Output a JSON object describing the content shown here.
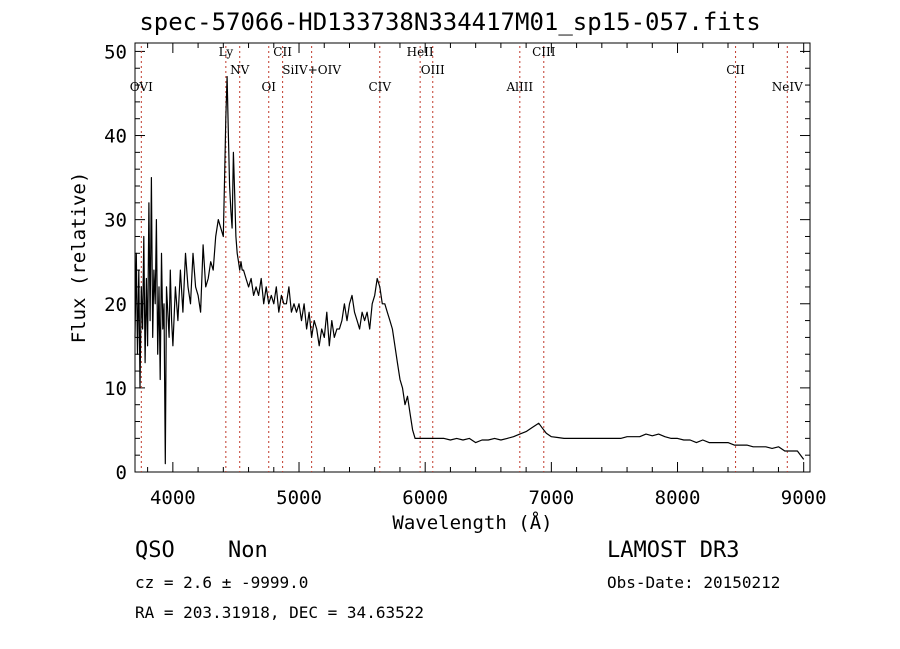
{
  "chart_data": {
    "type": "line",
    "title": "spec-57066-HD133738N334417M01_sp15-057.fits",
    "xlabel": "Wavelength (Å)",
    "ylabel": "Flux (relative)",
    "xlim": [
      3700,
      9050
    ],
    "ylim": [
      0,
      51
    ],
    "xticks": [
      4000,
      5000,
      6000,
      7000,
      8000,
      9000
    ],
    "yticks": [
      0,
      10,
      20,
      30,
      40,
      50
    ],
    "grid": false,
    "series": [
      {
        "name": "flux",
        "x": [
          3700,
          3710,
          3720,
          3730,
          3740,
          3750,
          3760,
          3770,
          3780,
          3790,
          3800,
          3810,
          3820,
          3830,
          3840,
          3850,
          3860,
          3870,
          3880,
          3890,
          3900,
          3910,
          3920,
          3930,
          3940,
          3950,
          3960,
          3970,
          3980,
          3990,
          4000,
          4020,
          4040,
          4060,
          4080,
          4100,
          4120,
          4140,
          4160,
          4180,
          4200,
          4220,
          4240,
          4260,
          4280,
          4300,
          4320,
          4340,
          4360,
          4380,
          4400,
          4410,
          4420,
          4430,
          4440,
          4450,
          4460,
          4470,
          4480,
          4490,
          4500,
          4510,
          4520,
          4530,
          4540,
          4550,
          4560,
          4580,
          4600,
          4620,
          4640,
          4660,
          4680,
          4700,
          4720,
          4740,
          4760,
          4780,
          4800,
          4820,
          4840,
          4860,
          4880,
          4900,
          4920,
          4940,
          4960,
          4980,
          5000,
          5020,
          5040,
          5060,
          5080,
          5100,
          5120,
          5140,
          5160,
          5180,
          5200,
          5220,
          5240,
          5260,
          5280,
          5300,
          5320,
          5340,
          5360,
          5380,
          5400,
          5420,
          5440,
          5460,
          5480,
          5500,
          5520,
          5540,
          5560,
          5580,
          5600,
          5620,
          5640,
          5660,
          5680,
          5700,
          5720,
          5740,
          5760,
          5780,
          5800,
          5820,
          5840,
          5860,
          5880,
          5900,
          5920,
          5940,
          5960,
          6000,
          6050,
          6100,
          6150,
          6200,
          6250,
          6300,
          6350,
          6400,
          6450,
          6500,
          6550,
          6600,
          6650,
          6700,
          6750,
          6800,
          6850,
          6900,
          6930,
          6960,
          7000,
          7050,
          7100,
          7150,
          7200,
          7250,
          7300,
          7350,
          7400,
          7450,
          7500,
          7550,
          7600,
          7650,
          7700,
          7750,
          7800,
          7850,
          7900,
          7950,
          8000,
          8050,
          8100,
          8150,
          8200,
          8250,
          8300,
          8350,
          8400,
          8450,
          8500,
          8550,
          8600,
          8650,
          8700,
          8750,
          8800,
          8850,
          8900,
          8950,
          9000
        ],
        "values": [
          16,
          26,
          14,
          24,
          10,
          22,
          17,
          28,
          13,
          23,
          15,
          32,
          18,
          35,
          16,
          24,
          20,
          30,
          14,
          22,
          11,
          26,
          17,
          20,
          1,
          22,
          19,
          16,
          24,
          18,
          15,
          22,
          18,
          24,
          19,
          26,
          22,
          20,
          26,
          22,
          21,
          19,
          27,
          22,
          23,
          25,
          24,
          28,
          30,
          29,
          28,
          35,
          42,
          47,
          40,
          34,
          31,
          29,
          38,
          33,
          28,
          26,
          25,
          24,
          25,
          24,
          24,
          23,
          22,
          23,
          21,
          22,
          21,
          23,
          20,
          22,
          20,
          21,
          20,
          22,
          19,
          21,
          20,
          20,
          22,
          19,
          20,
          19,
          20,
          18,
          20,
          17,
          19,
          16,
          18,
          17,
          15,
          17,
          16,
          19,
          15,
          18,
          16,
          17,
          17,
          18,
          20,
          18,
          20,
          21,
          19,
          18,
          17,
          19,
          18,
          19,
          17,
          20,
          21,
          23,
          22,
          20,
          20,
          19,
          18,
          17,
          15,
          13,
          11,
          10,
          8,
          9,
          7,
          5,
          4,
          4,
          4,
          4,
          4,
          4,
          4,
          3.8,
          4,
          3.8,
          4,
          3.5,
          3.8,
          3.8,
          4,
          3.8,
          4,
          4.2,
          4.5,
          4.8,
          5.3,
          5.8,
          5.2,
          4.6,
          4.2,
          4.1,
          4,
          4,
          4,
          4,
          4,
          4,
          4,
          4,
          4,
          4,
          4.2,
          4.2,
          4.2,
          4.5,
          4.3,
          4.5,
          4.2,
          4,
          4,
          3.8,
          3.8,
          3.5,
          3.8,
          3.5,
          3.5,
          3.5,
          3.5,
          3.2,
          3.2,
          3.2,
          3,
          3,
          3,
          2.8,
          3,
          2.5,
          2.5,
          2.5,
          1.5
        ]
      }
    ],
    "lines": [
      {
        "x": 3750,
        "label": "OVI"
      },
      {
        "x": 4420,
        "label": "Ly"
      },
      {
        "x": 4530,
        "label": "NV"
      },
      {
        "x": 4760,
        "label": "OI"
      },
      {
        "x": 4870,
        "label": "CII"
      },
      {
        "x": 5100,
        "label": "SiIV+OIV"
      },
      {
        "x": 5640,
        "label": "CIV"
      },
      {
        "x": 5960,
        "label": "HeII"
      },
      {
        "x": 6060,
        "label": "OIII"
      },
      {
        "x": 6750,
        "label": "AlIII"
      },
      {
        "x": 6940,
        "label": "CIII"
      },
      {
        "x": 8460,
        "label": "CII"
      },
      {
        "x": 8870,
        "label": "NeIV"
      }
    ]
  },
  "info": {
    "class_label": "QSO",
    "subclass": "Non",
    "cz_text": "cz = 2.6 ± -9999.0",
    "coords_text": "RA = 203.31918, DEC =  34.63522",
    "survey": "LAMOST DR3",
    "obs_date": "Obs-Date: 20150212"
  }
}
